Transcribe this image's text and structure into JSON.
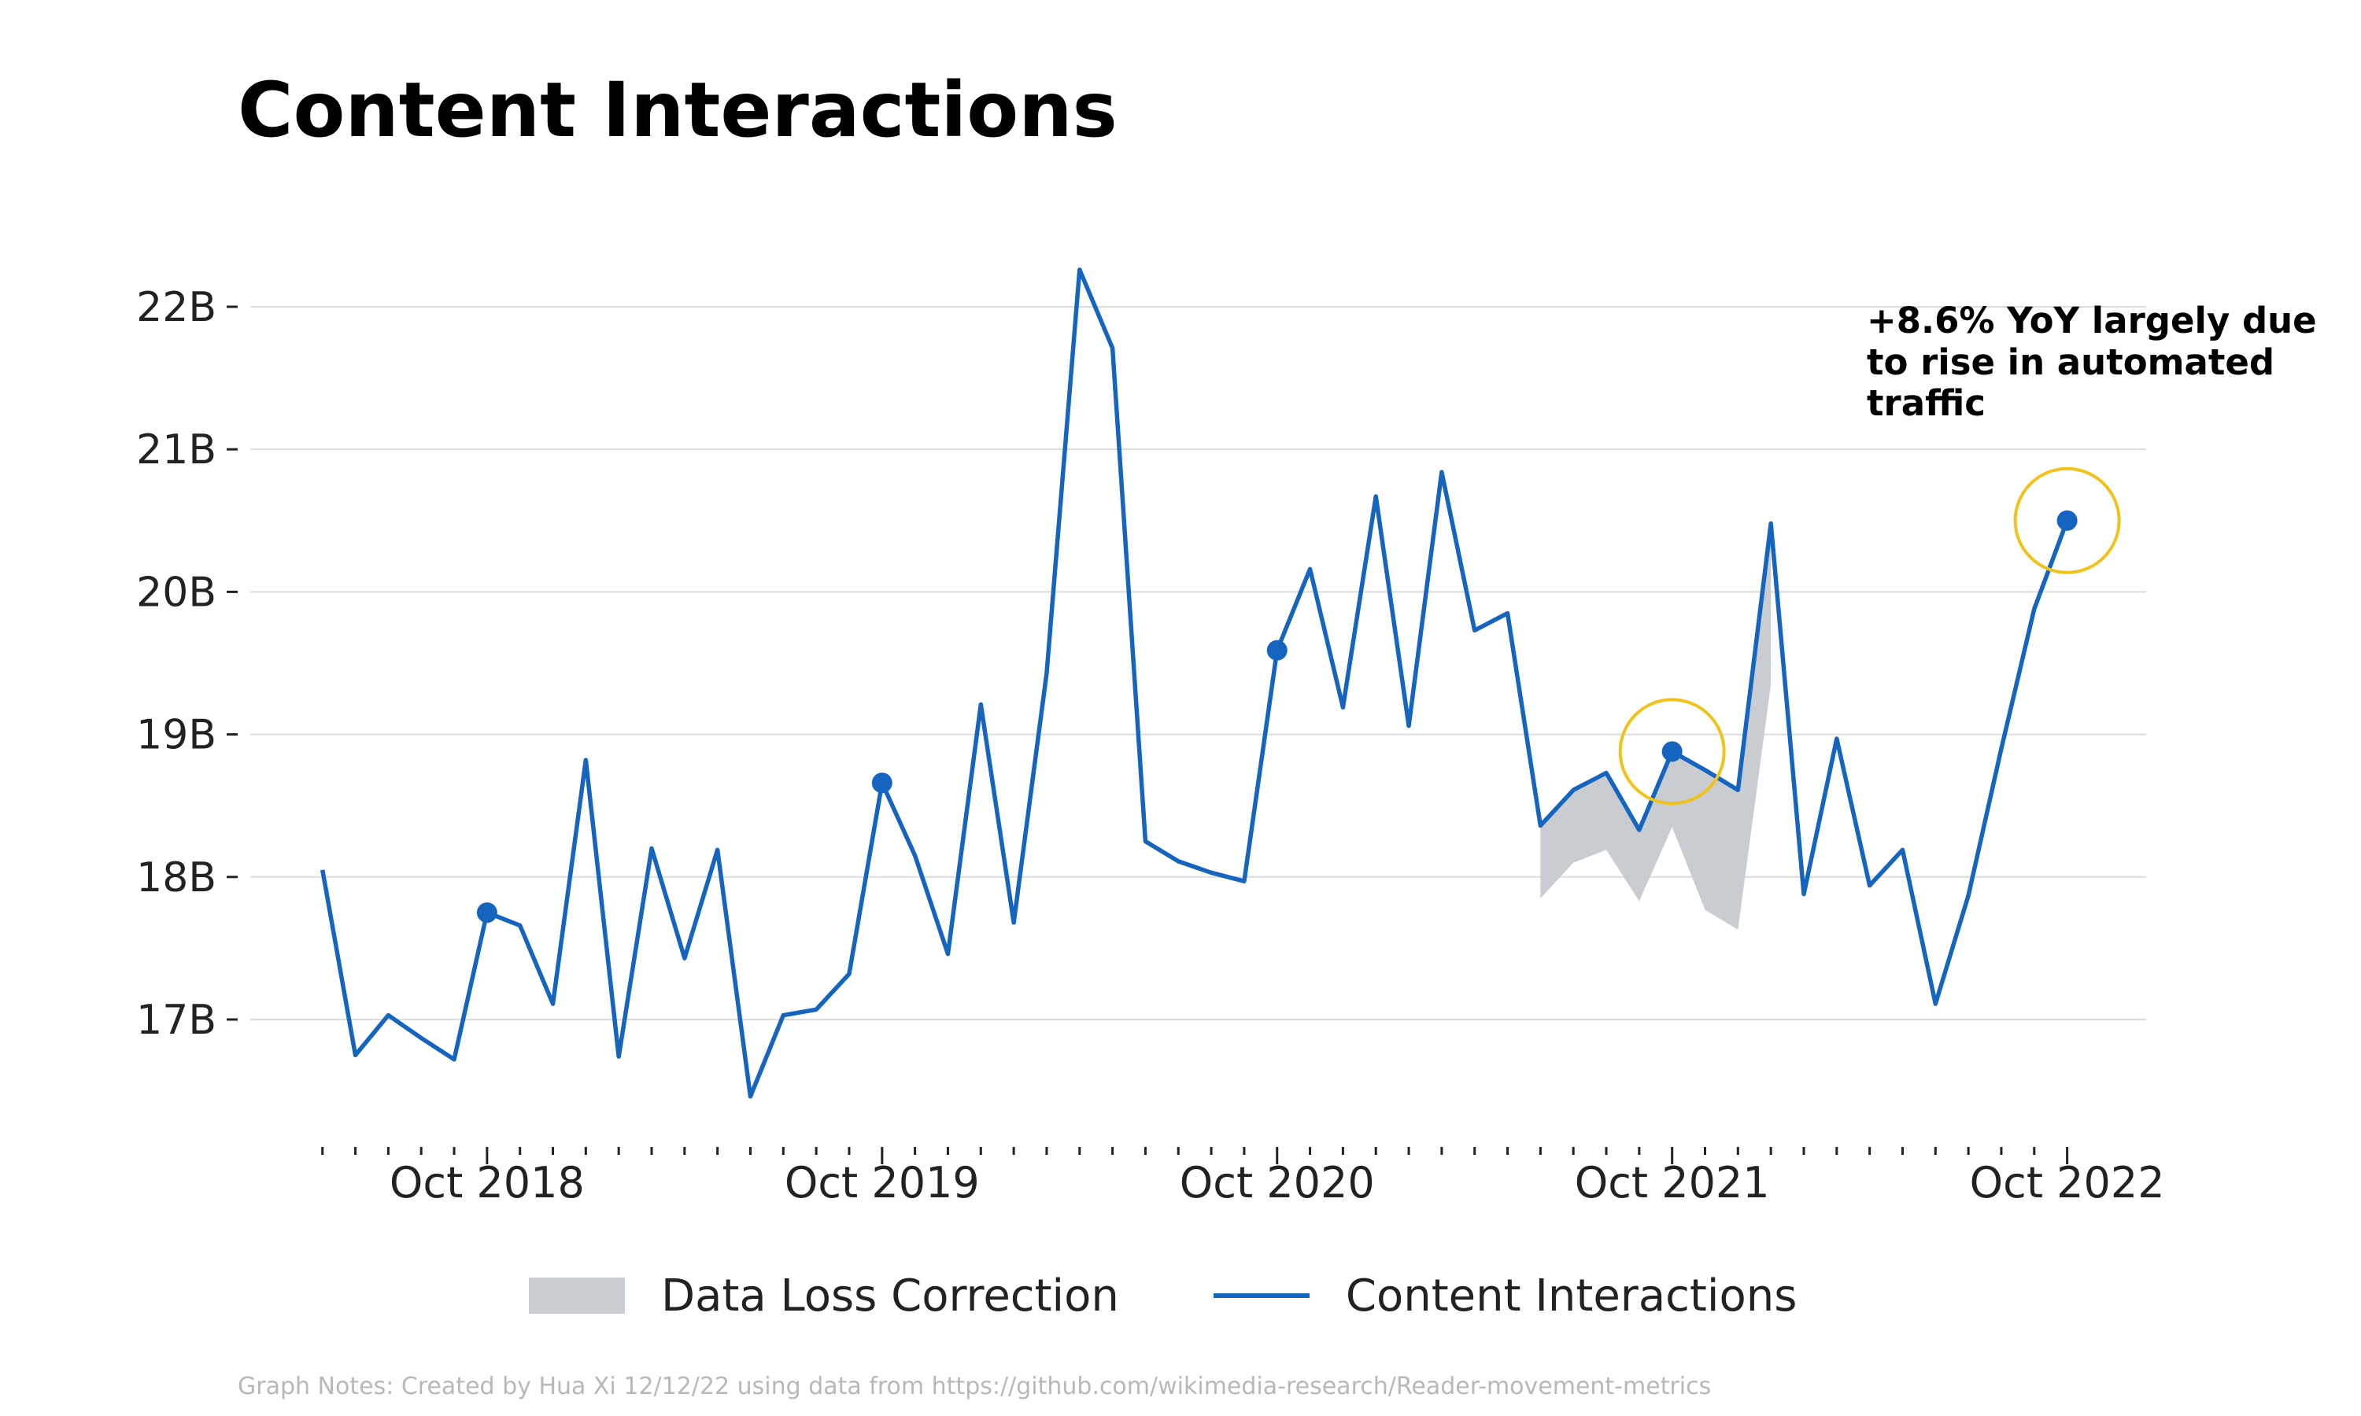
{
  "chart_data": {
    "type": "line",
    "title": "Content Interactions",
    "xlabel": "",
    "ylabel": "",
    "x_start": "2018-05",
    "x_tick_labels": [
      {
        "label": "Oct 2018",
        "month_index": 5
      },
      {
        "label": "Oct 2019",
        "month_index": 17
      },
      {
        "label": "Oct 2020",
        "month_index": 29
      },
      {
        "label": "Oct 2021",
        "month_index": 41
      },
      {
        "label": "Oct 2022",
        "month_index": 53
      }
    ],
    "y_tick_labels": [
      {
        "label": "17B",
        "value": 17
      },
      {
        "label": "18B",
        "value": 18
      },
      {
        "label": "19B",
        "value": 19
      },
      {
        "label": "20B",
        "value": 20
      },
      {
        "label": "21B",
        "value": 21
      },
      {
        "label": "22B",
        "value": 22
      }
    ],
    "ylim": [
      16.15,
      22.8
    ],
    "xlim": [
      -0.4,
      55.4
    ],
    "grid": true,
    "legend_position": "bottom",
    "series": [
      {
        "name": "Content Interactions",
        "color": "#1565c0",
        "values": [
          18.05,
          16.75,
          17.03,
          16.87,
          16.72,
          17.75,
          17.66,
          17.11,
          18.82,
          16.74,
          18.2,
          17.43,
          18.19,
          16.46,
          17.03,
          17.07,
          17.32,
          18.66,
          18.15,
          17.46,
          19.21,
          17.68,
          19.43,
          22.26,
          21.71,
          18.25,
          18.11,
          18.03,
          17.97,
          19.59,
          20.16,
          19.19,
          20.67,
          19.06,
          20.84,
          19.73,
          19.85,
          18.36,
          18.61,
          18.73,
          18.33,
          18.88,
          18.75,
          18.61,
          20.48,
          17.88,
          18.97,
          17.94,
          18.19,
          17.11,
          17.87,
          18.9,
          19.88,
          20.5
        ]
      },
      {
        "name": "Data Loss Correction",
        "color": "#c9ccd1",
        "type": "area",
        "start_index": 37,
        "lower": [
          17.85,
          18.1,
          18.19,
          17.83,
          18.35,
          17.77,
          17.63,
          19.35
        ]
      }
    ],
    "highlighted_points": [
      5,
      17,
      29,
      41,
      53
    ],
    "circled_points": [
      41,
      53
    ],
    "annotation": "+8.6% YoY largely due to rise in automated traffic",
    "legend": [
      "Data Loss Correction",
      "Content Interactions"
    ],
    "footnote": "Graph Notes: Created by Hua Xi 12/12/22 using data from https://github.com/wikimedia-research/Reader-movement-metrics"
  }
}
